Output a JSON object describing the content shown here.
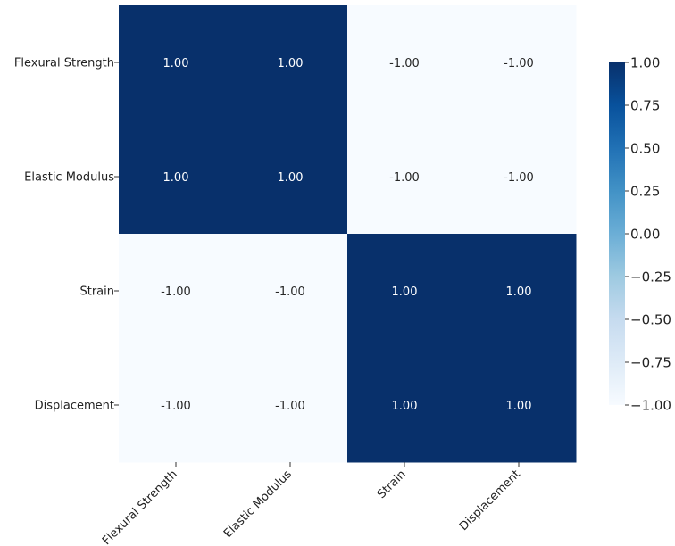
{
  "chart_data": {
    "type": "heatmap",
    "title": "",
    "xlabel": "",
    "ylabel": "",
    "x_categories": [
      "Flexural Strength",
      "Elastic Modulus",
      "Strain",
      "Displacement"
    ],
    "y_categories": [
      "Flexural Strength",
      "Elastic Modulus",
      "Strain",
      "Displacement"
    ],
    "values": [
      [
        1.0,
        1.0,
        -1.0,
        -1.0
      ],
      [
        1.0,
        1.0,
        -1.0,
        -1.0
      ],
      [
        -1.0,
        -1.0,
        1.0,
        1.0
      ],
      [
        -1.0,
        -1.0,
        1.0,
        1.0
      ]
    ],
    "cell_labels": [
      [
        "1.00",
        "1.00",
        "-1.00",
        "-1.00"
      ],
      [
        "1.00",
        "1.00",
        "-1.00",
        "-1.00"
      ],
      [
        "-1.00",
        "-1.00",
        "1.00",
        "1.00"
      ],
      [
        "-1.00",
        "-1.00",
        "1.00",
        "1.00"
      ]
    ],
    "colorbar": {
      "range": [
        -1.0,
        1.0
      ],
      "ticks": [
        1.0,
        0.75,
        0.5,
        0.25,
        0.0,
        -0.25,
        -0.5,
        -0.75,
        -1.0
      ],
      "tick_labels": [
        "1.00",
        "0.75",
        "0.50",
        "0.25",
        "0.00",
        "−0.25",
        "−0.50",
        "−0.75",
        "−1.00"
      ]
    },
    "colormap": "Blues",
    "colors": {
      "high": "#08306b",
      "low": "#f7fbff",
      "high_text": "#ffffff",
      "low_text": "#262626"
    }
  }
}
